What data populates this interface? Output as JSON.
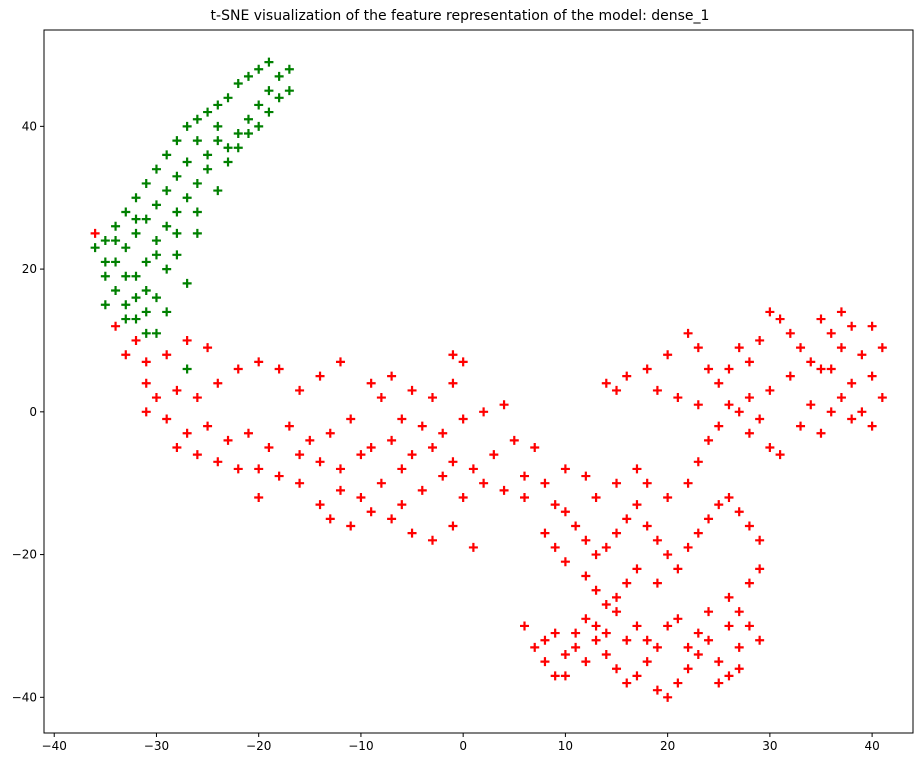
{
  "chart_data": {
    "type": "scatter",
    "title": "t-SNE visualization of the feature representation of the model: dense_1",
    "xlabel": "",
    "ylabel": "",
    "xlim": [
      -41,
      44
    ],
    "ylim": [
      -45,
      53.5
    ],
    "xticks": [
      -40,
      -30,
      -20,
      -10,
      0,
      10,
      20,
      30,
      40
    ],
    "yticks": [
      -40,
      -20,
      0,
      20,
      40
    ],
    "xtick_labels": [
      "−40",
      "−30",
      "−20",
      "−10",
      "0",
      "10",
      "20",
      "30",
      "40"
    ],
    "ytick_labels": [
      "−40",
      "−20",
      "0",
      "20",
      "40"
    ],
    "marker": "+",
    "grid": false,
    "legend": "none",
    "series": [
      {
        "color": "#ff0000",
        "points": [
          [
            -36,
            25
          ],
          [
            -34,
            12
          ],
          [
            -33,
            8
          ],
          [
            -32,
            10
          ],
          [
            -31,
            7
          ],
          [
            -29,
            8
          ],
          [
            -27,
            10
          ],
          [
            -25,
            9
          ],
          [
            -31,
            4
          ],
          [
            -30,
            2
          ],
          [
            -31,
            0
          ],
          [
            -28,
            3
          ],
          [
            -26,
            2
          ],
          [
            -24,
            4
          ],
          [
            -22,
            6
          ],
          [
            -20,
            7
          ],
          [
            -18,
            6
          ],
          [
            -16,
            3
          ],
          [
            -14,
            5
          ],
          [
            -12,
            7
          ],
          [
            -29,
            -1
          ],
          [
            -27,
            -3
          ],
          [
            -25,
            -2
          ],
          [
            -23,
            -4
          ],
          [
            -21,
            -3
          ],
          [
            -19,
            -5
          ],
          [
            -17,
            -2
          ],
          [
            -15,
            -4
          ],
          [
            -13,
            -3
          ],
          [
            -11,
            -1
          ],
          [
            -28,
            -5
          ],
          [
            -26,
            -6
          ],
          [
            -24,
            -7
          ],
          [
            -22,
            -8
          ],
          [
            -20,
            -8
          ],
          [
            -18,
            -9
          ],
          [
            -16,
            -6
          ],
          [
            -14,
            -7
          ],
          [
            -12,
            -8
          ],
          [
            -10,
            -6
          ],
          [
            -9,
            4
          ],
          [
            -7,
            5
          ],
          [
            -5,
            3
          ],
          [
            -3,
            2
          ],
          [
            -1,
            4
          ],
          [
            0,
            7
          ],
          [
            -1,
            8
          ],
          [
            -8,
            2
          ],
          [
            -6,
            -1
          ],
          [
            -4,
            -2
          ],
          [
            -2,
            -3
          ],
          [
            0,
            -1
          ],
          [
            2,
            0
          ],
          [
            4,
            1
          ],
          [
            -9,
            -5
          ],
          [
            -7,
            -4
          ],
          [
            -5,
            -6
          ],
          [
            -3,
            -5
          ],
          [
            -1,
            -7
          ],
          [
            1,
            -8
          ],
          [
            3,
            -6
          ],
          [
            5,
            -4
          ],
          [
            -12,
            -11
          ],
          [
            -10,
            -12
          ],
          [
            -8,
            -10
          ],
          [
            -6,
            -13
          ],
          [
            -4,
            -11
          ],
          [
            -2,
            -9
          ],
          [
            0,
            -12
          ],
          [
            2,
            -10
          ],
          [
            4,
            -11
          ],
          [
            6,
            -9
          ],
          [
            -13,
            -15
          ],
          [
            -11,
            -16
          ],
          [
            -9,
            -14
          ],
          [
            -7,
            -15
          ],
          [
            -5,
            -17
          ],
          [
            -3,
            -18
          ],
          [
            -1,
            -16
          ],
          [
            1,
            -19
          ],
          [
            -14,
            -13
          ],
          [
            -6,
            -8
          ],
          [
            -16,
            -10
          ],
          [
            -20,
            -12
          ],
          [
            6,
            -12
          ],
          [
            7,
            -5
          ],
          [
            8,
            -10
          ],
          [
            9,
            -13
          ],
          [
            10,
            -8
          ],
          [
            12,
            -9
          ],
          [
            13,
            -12
          ],
          [
            15,
            -10
          ],
          [
            17,
            -8
          ],
          [
            18,
            -10
          ],
          [
            20,
            -12
          ],
          [
            22,
            -10
          ],
          [
            23,
            -7
          ],
          [
            24,
            -4
          ],
          [
            25,
            -2
          ],
          [
            27,
            0
          ],
          [
            28,
            -3
          ],
          [
            29,
            -1
          ],
          [
            30,
            -5
          ],
          [
            31,
            -6
          ],
          [
            33,
            -2
          ],
          [
            34,
            1
          ],
          [
            35,
            -3
          ],
          [
            36,
            0
          ],
          [
            37,
            2
          ],
          [
            38,
            -1
          ],
          [
            39,
            0
          ],
          [
            40,
            -2
          ],
          [
            41,
            2
          ],
          [
            40,
            5
          ],
          [
            39,
            8
          ],
          [
            38,
            12
          ],
          [
            37,
            14
          ],
          [
            36,
            11
          ],
          [
            35,
            13
          ],
          [
            33,
            9
          ],
          [
            32,
            11
          ],
          [
            31,
            13
          ],
          [
            30,
            14
          ],
          [
            29,
            10
          ],
          [
            28,
            7
          ],
          [
            27,
            9
          ],
          [
            26,
            6
          ],
          [
            25,
            4
          ],
          [
            24,
            6
          ],
          [
            23,
            9
          ],
          [
            22,
            11
          ],
          [
            20,
            8
          ],
          [
            18,
            6
          ],
          [
            16,
            5
          ],
          [
            15,
            3
          ],
          [
            14,
            4
          ],
          [
            19,
            3
          ],
          [
            21,
            2
          ],
          [
            23,
            1
          ],
          [
            26,
            1
          ],
          [
            28,
            2
          ],
          [
            30,
            3
          ],
          [
            32,
            5
          ],
          [
            34,
            7
          ],
          [
            36,
            6
          ],
          [
            38,
            4
          ],
          [
            41,
            9
          ],
          [
            40,
            12
          ],
          [
            37,
            9
          ],
          [
            35,
            6
          ],
          [
            10,
            -14
          ],
          [
            11,
            -16
          ],
          [
            12,
            -18
          ],
          [
            13,
            -20
          ],
          [
            14,
            -19
          ],
          [
            15,
            -17
          ],
          [
            16,
            -15
          ],
          [
            17,
            -13
          ],
          [
            18,
            -16
          ],
          [
            19,
            -18
          ],
          [
            20,
            -20
          ],
          [
            21,
            -22
          ],
          [
            22,
            -19
          ],
          [
            23,
            -17
          ],
          [
            24,
            -15
          ],
          [
            25,
            -13
          ],
          [
            26,
            -12
          ],
          [
            27,
            -14
          ],
          [
            28,
            -16
          ],
          [
            29,
            -18
          ],
          [
            8,
            -17
          ],
          [
            9,
            -19
          ],
          [
            10,
            -21
          ],
          [
            12,
            -23
          ],
          [
            13,
            -25
          ],
          [
            14,
            -27
          ],
          [
            15,
            -26
          ],
          [
            16,
            -24
          ],
          [
            17,
            -22
          ],
          [
            19,
            -24
          ],
          [
            26,
            -26
          ],
          [
            27,
            -28
          ],
          [
            28,
            -24
          ],
          [
            29,
            -22
          ],
          [
            6,
            -30
          ],
          [
            7,
            -33
          ],
          [
            8,
            -35
          ],
          [
            9,
            -37
          ],
          [
            10,
            -34
          ],
          [
            11,
            -31
          ],
          [
            12,
            -29
          ],
          [
            13,
            -32
          ],
          [
            14,
            -34
          ],
          [
            15,
            -36
          ],
          [
            16,
            -38
          ],
          [
            17,
            -37
          ],
          [
            18,
            -35
          ],
          [
            19,
            -39
          ],
          [
            20,
            -40
          ],
          [
            21,
            -38
          ],
          [
            22,
            -36
          ],
          [
            23,
            -34
          ],
          [
            24,
            -32
          ],
          [
            25,
            -35
          ],
          [
            26,
            -37
          ],
          [
            27,
            -33
          ],
          [
            28,
            -30
          ],
          [
            29,
            -32
          ],
          [
            27,
            -36
          ],
          [
            25,
            -38
          ],
          [
            23,
            -31
          ],
          [
            21,
            -29
          ],
          [
            19,
            -33
          ],
          [
            17,
            -30
          ],
          [
            15,
            -28
          ],
          [
            13,
            -30
          ],
          [
            11,
            -33
          ],
          [
            9,
            -31
          ],
          [
            20,
            -30
          ],
          [
            18,
            -32
          ],
          [
            22,
            -33
          ],
          [
            24,
            -28
          ],
          [
            26,
            -30
          ],
          [
            16,
            -32
          ],
          [
            14,
            -31
          ],
          [
            12,
            -35
          ],
          [
            10,
            -37
          ],
          [
            8,
            -32
          ]
        ]
      },
      {
        "color": "#008000",
        "points": [
          [
            -35,
            24
          ],
          [
            -34,
            26
          ],
          [
            -33,
            28
          ],
          [
            -32,
            30
          ],
          [
            -31,
            32
          ],
          [
            -30,
            34
          ],
          [
            -29,
            36
          ],
          [
            -28,
            38
          ],
          [
            -27,
            40
          ],
          [
            -26,
            41
          ],
          [
            -25,
            42
          ],
          [
            -24,
            43
          ],
          [
            -23,
            44
          ],
          [
            -22,
            46
          ],
          [
            -21,
            47
          ],
          [
            -20,
            48
          ],
          [
            -19,
            49
          ],
          [
            -18,
            47
          ],
          [
            -17,
            48
          ],
          [
            -19,
            45
          ],
          [
            -20,
            43
          ],
          [
            -21,
            41
          ],
          [
            -22,
            39
          ],
          [
            -23,
            37
          ],
          [
            -24,
            38
          ],
          [
            -25,
            36
          ],
          [
            -26,
            38
          ],
          [
            -27,
            35
          ],
          [
            -28,
            33
          ],
          [
            -29,
            31
          ],
          [
            -30,
            29
          ],
          [
            -31,
            27
          ],
          [
            -32,
            25
          ],
          [
            -33,
            23
          ],
          [
            -34,
            21
          ],
          [
            -35,
            19
          ],
          [
            -34,
            17
          ],
          [
            -33,
            15
          ],
          [
            -32,
            13
          ],
          [
            -31,
            11
          ],
          [
            -33,
            13
          ],
          [
            -35,
            15
          ],
          [
            -36,
            23
          ],
          [
            -35,
            21
          ],
          [
            -32,
            19
          ],
          [
            -31,
            17
          ],
          [
            -30,
            22
          ],
          [
            -29,
            26
          ],
          [
            -28,
            28
          ],
          [
            -27,
            30
          ],
          [
            -26,
            32
          ],
          [
            -25,
            34
          ],
          [
            -24,
            31
          ],
          [
            -23,
            35
          ],
          [
            -22,
            37
          ],
          [
            -21,
            39
          ],
          [
            -20,
            40
          ],
          [
            -19,
            42
          ],
          [
            -18,
            44
          ],
          [
            -17,
            45
          ],
          [
            -24,
            40
          ],
          [
            -26,
            28
          ],
          [
            -28,
            25
          ],
          [
            -30,
            24
          ],
          [
            -32,
            27
          ],
          [
            -34,
            24
          ],
          [
            -31,
            21
          ],
          [
            -33,
            19
          ],
          [
            -30,
            16
          ],
          [
            -32,
            16
          ],
          [
            -29,
            20
          ],
          [
            -28,
            22
          ],
          [
            -26,
            25
          ],
          [
            -27,
            18
          ],
          [
            -29,
            14
          ],
          [
            -31,
            14
          ],
          [
            -30,
            11
          ],
          [
            -27,
            6
          ]
        ]
      }
    ]
  }
}
